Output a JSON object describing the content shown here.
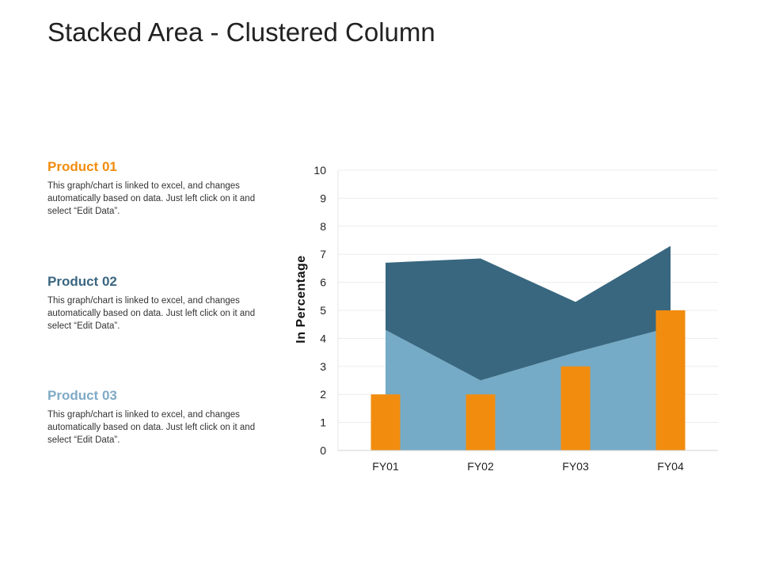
{
  "page": {
    "title": "Stacked Area - Clustered Column"
  },
  "products": [
    {
      "heading": "Product 01",
      "color": "#F28C0F",
      "text": "This graph/chart is linked to excel, and changes automatically based on data. Just left click on it and select “Edit Data”."
    },
    {
      "heading": "Product 02",
      "color": "#3A6681",
      "text": "This graph/chart is linked to excel, and changes automatically based on data. Just left click on it and select “Edit Data”."
    },
    {
      "heading": "Product 03",
      "color": "#7FAAC6",
      "text": "This graph/chart is linked to excel, and changes automatically based on data. Just left click on it and select “Edit Data”."
    }
  ],
  "chart_data": {
    "type": "area",
    "title": "",
    "xlabel": "",
    "ylabel": "In Percentage",
    "categories": [
      "FY01",
      "FY02",
      "FY03",
      "FY04"
    ],
    "ylim": [
      0,
      10
    ],
    "yticks": [
      0,
      1,
      2,
      3,
      4,
      5,
      6,
      7,
      8,
      9,
      10
    ],
    "grid": true,
    "stacked_areas": [
      {
        "values": [
          4.3,
          2.5,
          3.5,
          4.4
        ],
        "color": "#75ABC7"
      },
      {
        "values": [
          2.4,
          4.35,
          1.8,
          2.9
        ],
        "color": "#38677F"
      }
    ],
    "columns": [
      {
        "values": [
          2,
          2,
          3,
          5
        ],
        "color": "#F28C0F"
      }
    ]
  }
}
